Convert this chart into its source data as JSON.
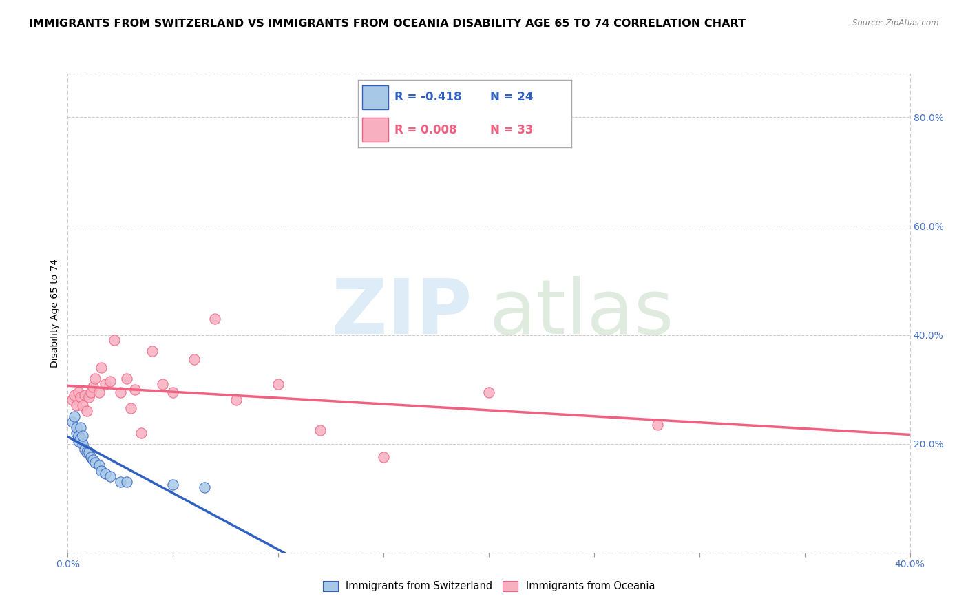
{
  "title": "IMMIGRANTS FROM SWITZERLAND VS IMMIGRANTS FROM OCEANIA DISABILITY AGE 65 TO 74 CORRELATION CHART",
  "source": "Source: ZipAtlas.com",
  "ylabel": "Disability Age 65 to 74",
  "right_yticks": [
    "80.0%",
    "60.0%",
    "40.0%",
    "20.0%"
  ],
  "right_ytick_vals": [
    0.8,
    0.6,
    0.4,
    0.2
  ],
  "xlim": [
    0.0,
    0.4
  ],
  "ylim": [
    0.0,
    0.88
  ],
  "legend_r1": "R = -0.418",
  "legend_n1": "N = 24",
  "legend_r2": "R = 0.008",
  "legend_n2": "N = 33",
  "blue_color": "#a8c8e8",
  "pink_color": "#f8b0c0",
  "regression_blue_color": "#3060c0",
  "regression_pink_color": "#f06080",
  "legend_label1": "Immigrants from Switzerland",
  "legend_label2": "Immigrants from Oceania",
  "blue_x": [
    0.002,
    0.003,
    0.004,
    0.004,
    0.005,
    0.005,
    0.006,
    0.006,
    0.007,
    0.007,
    0.008,
    0.009,
    0.01,
    0.011,
    0.012,
    0.013,
    0.015,
    0.016,
    0.018,
    0.02,
    0.025,
    0.028,
    0.05,
    0.065
  ],
  "blue_y": [
    0.24,
    0.25,
    0.22,
    0.23,
    0.215,
    0.205,
    0.23,
    0.21,
    0.2,
    0.215,
    0.19,
    0.185,
    0.185,
    0.175,
    0.17,
    0.165,
    0.16,
    0.15,
    0.145,
    0.14,
    0.13,
    0.13,
    0.125,
    0.12
  ],
  "pink_x": [
    0.002,
    0.003,
    0.004,
    0.005,
    0.006,
    0.007,
    0.008,
    0.009,
    0.01,
    0.011,
    0.012,
    0.013,
    0.015,
    0.016,
    0.018,
    0.02,
    0.022,
    0.025,
    0.028,
    0.03,
    0.032,
    0.035,
    0.04,
    0.045,
    0.05,
    0.06,
    0.07,
    0.08,
    0.1,
    0.12,
    0.15,
    0.2,
    0.28
  ],
  "pink_y": [
    0.28,
    0.29,
    0.27,
    0.295,
    0.285,
    0.27,
    0.29,
    0.26,
    0.285,
    0.295,
    0.305,
    0.32,
    0.295,
    0.34,
    0.31,
    0.315,
    0.39,
    0.295,
    0.32,
    0.265,
    0.3,
    0.22,
    0.37,
    0.31,
    0.295,
    0.355,
    0.43,
    0.28,
    0.31,
    0.225,
    0.175,
    0.295,
    0.235
  ],
  "marker_size": 120,
  "title_fontsize": 11.5,
  "axis_fontsize": 10,
  "legend_fontsize": 12
}
